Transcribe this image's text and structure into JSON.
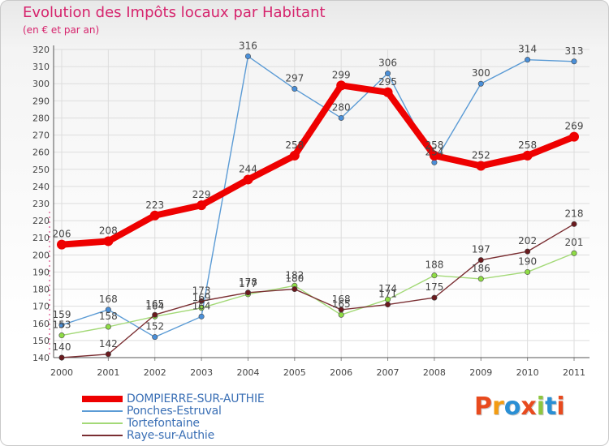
{
  "header": {
    "title": "Evolution des Impôts locaux par Habitant",
    "subtitle": "(en € et par an)"
  },
  "logo": {
    "text": "Proxiti",
    "letter_colors": [
      "#e84a1e",
      "#f39c12",
      "#2a8fd4",
      "#e84a1e",
      "#8dc63f",
      "#2a8fd4",
      "#e84a1e"
    ]
  },
  "colors": {
    "axis_text": "#444444",
    "grid": "#dddddd",
    "legend_text": "#3a6fb5"
  },
  "chart_data": {
    "type": "line",
    "title": "Evolution des Impôts locaux par Habitant",
    "subtitle": "(en € et par an)",
    "xlabel": "",
    "ylabel": "",
    "x": [
      "2000",
      "2001",
      "2002",
      "2003",
      "2004",
      "2005",
      "2006",
      "2007",
      "2008",
      "2009",
      "2010",
      "2011"
    ],
    "ylim": [
      140,
      320
    ],
    "yticks": [
      140,
      150,
      160,
      170,
      180,
      190,
      200,
      210,
      220,
      230,
      240,
      250,
      260,
      270,
      280,
      290,
      300,
      310,
      320
    ],
    "grid": true,
    "legend_position": "bottom-left",
    "series": [
      {
        "name": "DOMPIERRE-SUR-AUTHIE",
        "color": "#ee0000",
        "marker_fill": "#ee0000",
        "emphasis": true,
        "values": [
          206,
          208,
          223,
          229,
          244,
          258,
          299,
          295,
          258,
          252,
          258,
          269
        ]
      },
      {
        "name": "Ponches-Estruval",
        "color": "#5b9bd5",
        "marker_fill": "#4a8fd8",
        "emphasis": false,
        "values": [
          159,
          168,
          152,
          164,
          316,
          297,
          280,
          306,
          254,
          300,
          314,
          313
        ]
      },
      {
        "name": "Tortefontaine",
        "color": "#a3d977",
        "marker_fill": "#8fdc45",
        "emphasis": false,
        "values": [
          153,
          158,
          164,
          169,
          177,
          182,
          165,
          174,
          188,
          186,
          190,
          201
        ]
      },
      {
        "name": "Raye-sur-Authie",
        "color": "#7a2e32",
        "marker_fill": "#6a1a1e",
        "emphasis": false,
        "values": [
          140,
          142,
          165,
          173,
          178,
          180,
          168,
          171,
          175,
          197,
          202,
          218
        ]
      }
    ]
  }
}
